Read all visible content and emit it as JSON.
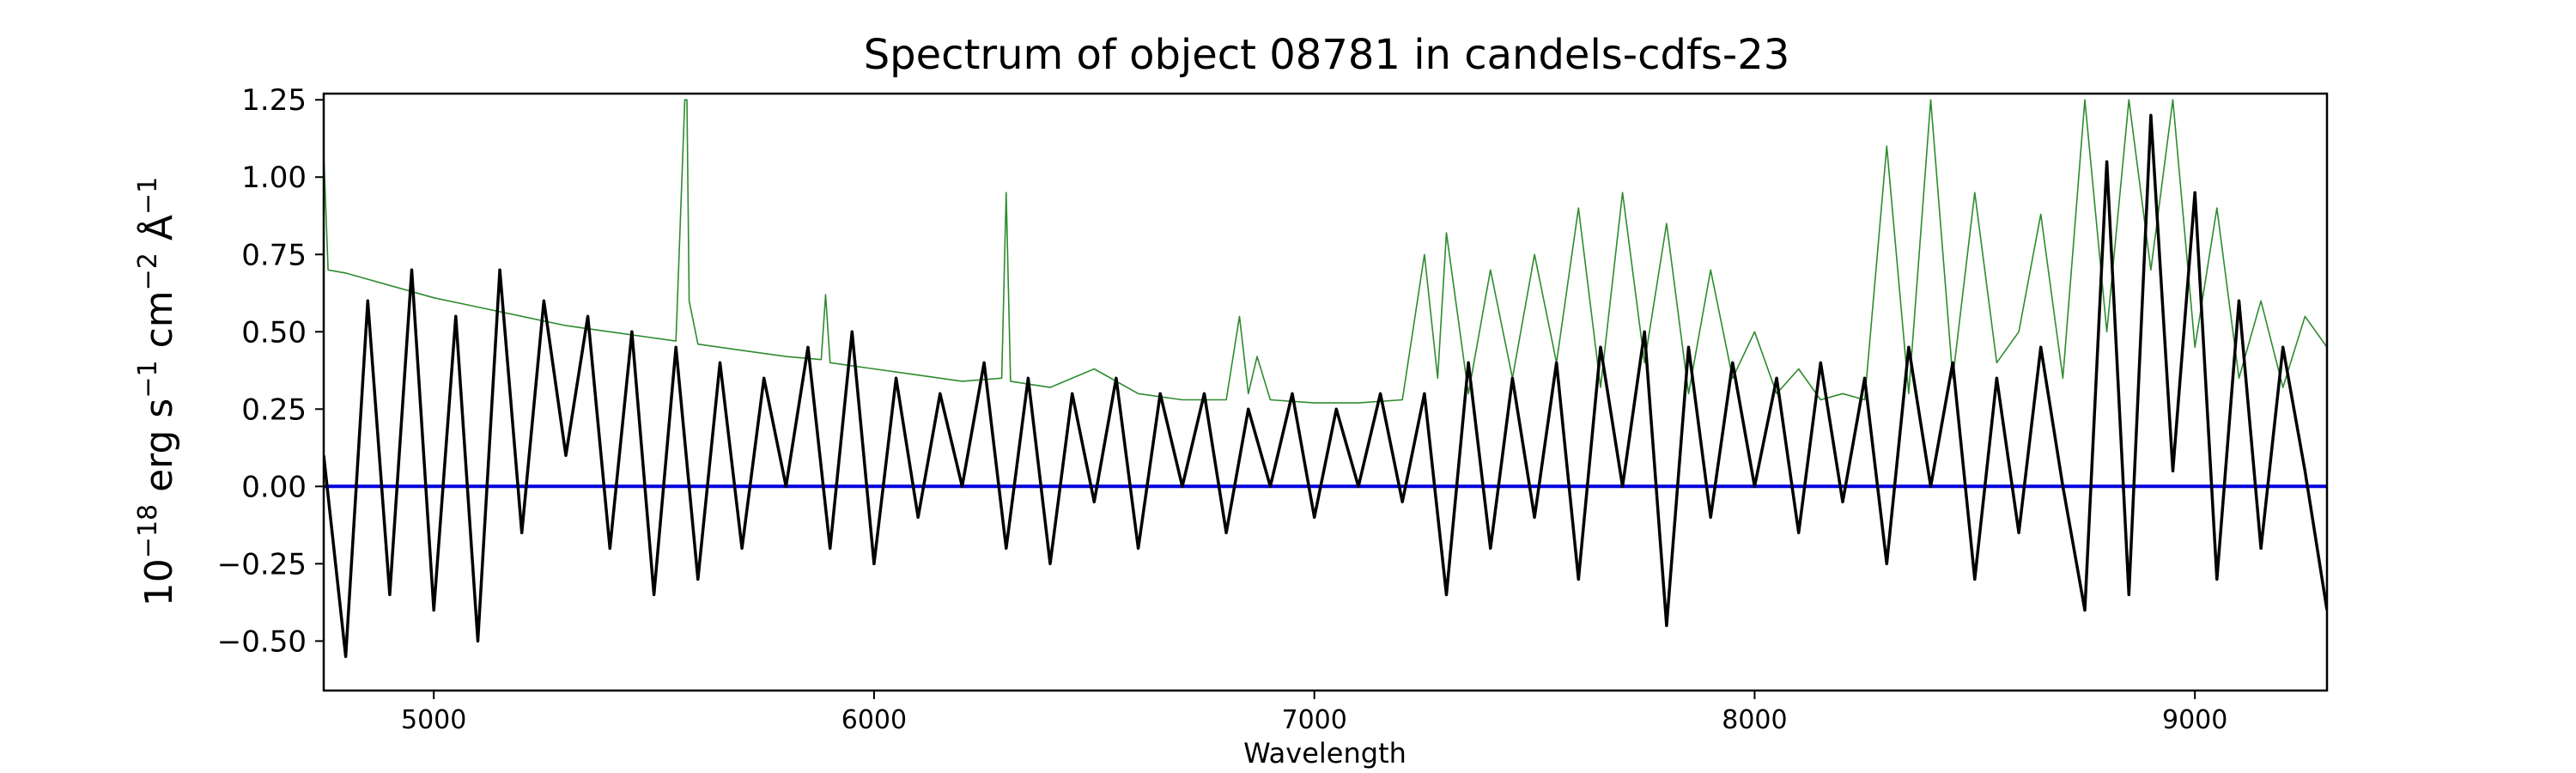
{
  "chart_data": {
    "type": "line",
    "title": "Spectrum of object 08781 in candels-cdfs-23",
    "xlabel": "Wavelength",
    "ylabel": {
      "base": "10",
      "exp": "−18",
      "unit_a": " erg s",
      "exp_a": "−1",
      "unit_b": " cm",
      "exp_b": "−2",
      "unit_c": " Å",
      "exp_c": "−1"
    },
    "xlim": [
      4750,
      9300
    ],
    "ylim": [
      -0.66,
      1.27
    ],
    "x_ticks": [
      {
        "value": 5000,
        "label": "5000"
      },
      {
        "value": 6000,
        "label": "6000"
      },
      {
        "value": 7000,
        "label": "7000"
      },
      {
        "value": 8000,
        "label": "8000"
      },
      {
        "value": 9000,
        "label": "9000"
      }
    ],
    "y_ticks": [
      {
        "value": -0.5,
        "label": "−0.50"
      },
      {
        "value": -0.25,
        "label": "−0.25"
      },
      {
        "value": 0.0,
        "label": "0.00"
      },
      {
        "value": 0.25,
        "label": "0.25"
      },
      {
        "value": 0.5,
        "label": "0.50"
      },
      {
        "value": 0.75,
        "label": "0.75"
      },
      {
        "value": 1.0,
        "label": "1.00"
      },
      {
        "value": 1.25,
        "label": "1.25"
      }
    ],
    "series": [
      {
        "color": "#000000",
        "x": [
          4750,
          4800,
          4850,
          4900,
          4950,
          5000,
          5050,
          5100,
          5150,
          5200,
          5250,
          5300,
          5350,
          5400,
          5450,
          5500,
          5550,
          5600,
          5650,
          5700,
          5750,
          5800,
          5850,
          5900,
          5950,
          6000,
          6050,
          6100,
          6150,
          6200,
          6250,
          6300,
          6350,
          6400,
          6450,
          6500,
          6550,
          6600,
          6650,
          6700,
          6750,
          6800,
          6850,
          6900,
          6950,
          7000,
          7050,
          7100,
          7150,
          7200,
          7250,
          7300,
          7350,
          7400,
          7450,
          7500,
          7550,
          7600,
          7650,
          7700,
          7750,
          7800,
          7850,
          7900,
          7950,
          8000,
          8050,
          8100,
          8150,
          8200,
          8250,
          8300,
          8350,
          8400,
          8450,
          8500,
          8550,
          8600,
          8650,
          8700,
          8750,
          8800,
          8850,
          8900,
          8950,
          9000,
          9050,
          9100,
          9150,
          9200,
          9250,
          9300
        ],
        "y": [
          0.1,
          -0.55,
          0.6,
          -0.35,
          0.7,
          -0.4,
          0.55,
          -0.5,
          0.7,
          -0.15,
          0.6,
          0.1,
          0.55,
          -0.2,
          0.5,
          -0.35,
          0.45,
          -0.3,
          0.4,
          -0.2,
          0.35,
          0.0,
          0.45,
          -0.2,
          0.5,
          -0.25,
          0.35,
          -0.1,
          0.3,
          0.0,
          0.4,
          -0.2,
          0.35,
          -0.25,
          0.3,
          -0.05,
          0.35,
          -0.2,
          0.3,
          0.0,
          0.3,
          -0.15,
          0.25,
          0.0,
          0.3,
          -0.1,
          0.25,
          0.0,
          0.3,
          -0.05,
          0.3,
          -0.35,
          0.4,
          -0.2,
          0.35,
          -0.1,
          0.4,
          -0.3,
          0.45,
          0.0,
          0.5,
          -0.45,
          0.45,
          -0.1,
          0.4,
          0.0,
          0.35,
          -0.15,
          0.4,
          -0.05,
          0.35,
          -0.25,
          0.45,
          0.0,
          0.4,
          -0.3,
          0.35,
          -0.15,
          0.45,
          0.0,
          -0.4,
          1.05,
          -0.35,
          1.2,
          0.05,
          0.95,
          -0.3,
          0.6,
          -0.2,
          0.45,
          0.05,
          -0.4
        ],
        "linewidth": "thick"
      },
      {
        "color": "#2e8b2e",
        "x": [
          4750,
          4760,
          4800,
          4850,
          4900,
          5000,
          5100,
          5200,
          5300,
          5400,
          5500,
          5550,
          5570,
          5575,
          5580,
          5600,
          5700,
          5800,
          5880,
          5890,
          5900,
          6000,
          6100,
          6200,
          6290,
          6300,
          6310,
          6400,
          6500,
          6600,
          6700,
          6800,
          6830,
          6850,
          6870,
          6900,
          7000,
          7100,
          7200,
          7250,
          7280,
          7300,
          7350,
          7400,
          7450,
          7500,
          7550,
          7600,
          7650,
          7700,
          7750,
          7800,
          7850,
          7900,
          7950,
          8000,
          8050,
          8100,
          8150,
          8200,
          8250,
          8300,
          8350,
          8400,
          8450,
          8500,
          8550,
          8600,
          8650,
          8700,
          8750,
          8800,
          8850,
          8900,
          8950,
          9000,
          9050,
          9100,
          9150,
          9200,
          9250,
          9300
        ],
        "y": [
          1.08,
          0.7,
          0.69,
          0.67,
          0.65,
          0.61,
          0.58,
          0.55,
          0.52,
          0.5,
          0.48,
          0.47,
          1.25,
          1.25,
          0.6,
          0.46,
          0.44,
          0.42,
          0.41,
          0.62,
          0.4,
          0.38,
          0.36,
          0.34,
          0.35,
          0.95,
          0.34,
          0.32,
          0.38,
          0.3,
          0.28,
          0.28,
          0.55,
          0.3,
          0.42,
          0.28,
          0.27,
          0.27,
          0.28,
          0.75,
          0.35,
          0.82,
          0.3,
          0.7,
          0.35,
          0.75,
          0.4,
          0.9,
          0.32,
          0.95,
          0.4,
          0.85,
          0.3,
          0.7,
          0.35,
          0.5,
          0.3,
          0.38,
          0.28,
          0.3,
          0.28,
          1.1,
          0.3,
          1.25,
          0.35,
          0.95,
          0.4,
          0.5,
          0.88,
          0.35,
          1.25,
          0.5,
          1.25,
          0.7,
          1.25,
          0.45,
          0.9,
          0.35,
          0.6,
          0.32,
          0.55,
          0.45
        ]
      },
      {
        "color": "#0000dd",
        "x": [
          4750,
          9300
        ],
        "y": [
          0.0,
          0.0
        ]
      }
    ],
    "grid": false,
    "legend": false
  }
}
